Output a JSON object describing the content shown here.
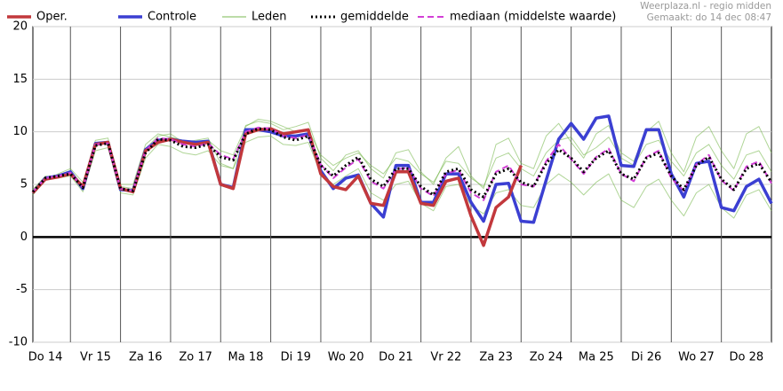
{
  "chart_data": {
    "type": "line",
    "source": "Weerplaza.nl - regio midden",
    "created": "Gemaakt: do 14 dec 08:47",
    "categories": [
      "Do 14",
      "Vr 15",
      "Za 16",
      "Zo 17",
      "Ma 18",
      "Di 19",
      "Wo 20",
      "Do 21",
      "Vr 22",
      "Za 23",
      "Zo 24",
      "Ma 25",
      "Di 26",
      "Wo 27",
      "Do 28"
    ],
    "x": [
      0.25,
      0.5,
      0.75,
      1,
      1.25,
      1.5,
      1.75,
      2,
      2.25,
      2.5,
      2.75,
      3,
      3.25,
      3.5,
      3.75,
      4,
      4.25,
      4.5,
      4.75,
      5,
      5.25,
      5.5,
      5.75,
      6,
      6.25,
      6.5,
      6.75,
      7,
      7.25,
      7.5,
      7.75,
      8,
      8.25,
      8.5,
      8.75,
      9,
      9.25,
      9.5,
      9.75,
      10,
      10.25,
      10.5,
      10.75,
      11,
      11.25,
      11.5,
      11.75,
      12,
      12.25,
      12.5,
      12.75,
      13,
      13.25,
      13.5,
      13.75,
      14,
      14.25,
      14.5,
      14.75,
      15
    ],
    "xlim": [
      0.25,
      15
    ],
    "ylim": [
      -10,
      20
    ],
    "yticks": [
      -10,
      -5,
      0,
      5,
      10,
      15,
      20
    ],
    "grid": true,
    "series": [
      {
        "name": "Oper.",
        "color": "#c2383c",
        "style": "solid",
        "width": 3.5,
        "values": [
          4.2,
          5.5,
          5.7,
          6.0,
          4.8,
          8.8,
          9.0,
          4.6,
          4.3,
          8.2,
          9.0,
          9.3,
          9.0,
          8.8,
          9.0,
          5.0,
          4.6,
          9.8,
          10.2,
          10.3,
          9.8,
          10.0,
          10.2,
          6.0,
          4.8,
          4.5,
          5.8,
          3.2,
          3.0,
          6.2,
          6.2,
          3.2,
          3.0,
          5.3,
          5.6,
          2.0,
          -0.8,
          2.8,
          3.8,
          6.8,
          null,
          null,
          null,
          null,
          null,
          null,
          null,
          null,
          null,
          null,
          null,
          null,
          null,
          null,
          null,
          null,
          null,
          null,
          null,
          null
        ]
      },
      {
        "name": "Controle",
        "color": "#3b3fd2",
        "style": "solid",
        "width": 3.5,
        "values": [
          4.2,
          5.6,
          5.8,
          6.2,
          4.6,
          8.9,
          9.0,
          4.5,
          4.4,
          8.3,
          9.2,
          9.3,
          9.1,
          9.0,
          9.1,
          5.0,
          4.7,
          10.2,
          10.2,
          10.0,
          9.6,
          9.6,
          9.8,
          6.3,
          4.6,
          5.6,
          5.9,
          3.2,
          1.9,
          6.8,
          6.8,
          3.3,
          3.3,
          6.0,
          6.0,
          3.3,
          1.5,
          5.0,
          5.1,
          1.5,
          1.4,
          5.4,
          9.3,
          10.8,
          9.3,
          11.3,
          11.5,
          6.8,
          6.7,
          10.2,
          10.2,
          6.0,
          3.8,
          7.0,
          7.2,
          2.8,
          2.5,
          4.8,
          5.5,
          3.2
        ]
      },
      {
        "name": "Leden",
        "color": "#6db33f",
        "style": "thin",
        "width": 1,
        "members": [
          [
            4,
            5.5,
            5.9,
            6.3,
            4.9,
            8.6,
            9.1,
            4.8,
            4.6,
            8.4,
            9.6,
            9.8,
            9,
            9.2,
            9.4,
            7,
            6.5,
            10.6,
            11,
            10.8,
            10.2,
            10.5,
            10.9,
            7.5,
            6.3,
            7.8,
            8.2,
            6.5,
            5.6,
            8,
            8.3,
            6.2,
            5,
            7.5,
            8.6,
            5.8,
            4.6,
            8.8,
            9.4,
            7,
            6.5,
            9.6,
            10.8,
            9,
            7.5,
            9.8,
            10.6,
            8,
            7.2,
            10,
            11,
            8,
            6.2,
            9.5,
            10.5,
            8.2,
            6.5,
            9.8,
            10.5,
            8
          ],
          [
            4.5,
            5.8,
            5.6,
            5.8,
            4.3,
            8.2,
            8.5,
            4.2,
            4,
            7.5,
            8.8,
            8.6,
            8,
            7.8,
            8.2,
            6.8,
            6.5,
            9,
            9.5,
            9.6,
            8.8,
            8.7,
            9,
            6,
            5,
            5.8,
            6.5,
            4.2,
            3.5,
            5,
            5.3,
            3.2,
            2.5,
            4.8,
            5,
            3,
            2.2,
            4.2,
            4.5,
            3,
            2.8,
            5,
            6,
            5.2,
            4,
            5.2,
            6,
            3.5,
            2.8,
            4.8,
            5.5,
            3.5,
            2,
            4.2,
            5,
            2.8,
            1.8,
            4,
            4.5,
            2.5
          ],
          [
            4.2,
            5.4,
            6,
            6.5,
            5.2,
            9.2,
            9.4,
            5,
            5,
            8.8,
            9.8,
            9.5,
            9.2,
            9,
            9.2,
            8.2,
            7.8,
            10.5,
            11.2,
            11,
            10.5,
            10,
            10.2,
            7.8,
            6.8,
            7.5,
            8,
            6.8,
            6,
            7.5,
            7.2,
            6,
            5.2,
            7.2,
            7,
            5.6,
            4.8,
            7.5,
            8,
            6.5,
            5.8,
            8,
            9.2,
            9.5,
            7.8,
            8.5,
            9.5,
            7.5,
            6.8,
            8.8,
            9.2,
            7.2,
            5.8,
            8,
            8.8,
            6.8,
            5.5,
            7.8,
            8.2,
            6.2
          ]
        ]
      },
      {
        "name": "gemiddelde",
        "color": "#000000",
        "style": "dotted",
        "width": 3,
        "values": [
          4.3,
          5.6,
          5.8,
          6.0,
          4.7,
          8.7,
          8.9,
          4.6,
          4.4,
          8.0,
          9.3,
          9.2,
          8.6,
          8.5,
          8.8,
          7.6,
          7.3,
          9.8,
          10.3,
          10.2,
          9.5,
          9.2,
          9.6,
          6.8,
          5.8,
          6.8,
          7.6,
          5.5,
          4.8,
          6.5,
          6.5,
          4.8,
          4.0,
          6.2,
          6.5,
          4.5,
          3.8,
          6.0,
          6.5,
          5.2,
          4.8,
          7.0,
          8.3,
          7.5,
          6.2,
          7.5,
          8.2,
          6.0,
          5.5,
          7.5,
          8.0,
          5.8,
          4.5,
          6.8,
          7.6,
          5.5,
          4.5,
          6.5,
          7.0,
          5.2
        ]
      },
      {
        "name": "mediaan (middelste waarde)",
        "color": "#d23fd6",
        "style": "dashed",
        "width": 2,
        "values": [
          4.3,
          5.6,
          5.8,
          6.1,
          4.7,
          8.8,
          8.9,
          4.6,
          4.4,
          8.2,
          9.4,
          9.3,
          8.8,
          8.6,
          8.9,
          7.8,
          7.4,
          10.0,
          10.4,
          10.3,
          9.6,
          9.4,
          9.7,
          6.9,
          5.6,
          6.6,
          7.4,
          5.3,
          4.6,
          6.4,
          6.6,
          4.6,
          3.9,
          6.0,
          6.4,
          4.2,
          3.5,
          6.2,
          6.8,
          5.0,
          4.8,
          7.2,
          8.8,
          7.4,
          6.0,
          7.6,
          8.4,
          6.0,
          5.3,
          7.6,
          8.2,
          5.6,
          4.4,
          6.9,
          7.8,
          5.4,
          4.4,
          6.7,
          7.2,
          5.1
        ]
      }
    ]
  }
}
